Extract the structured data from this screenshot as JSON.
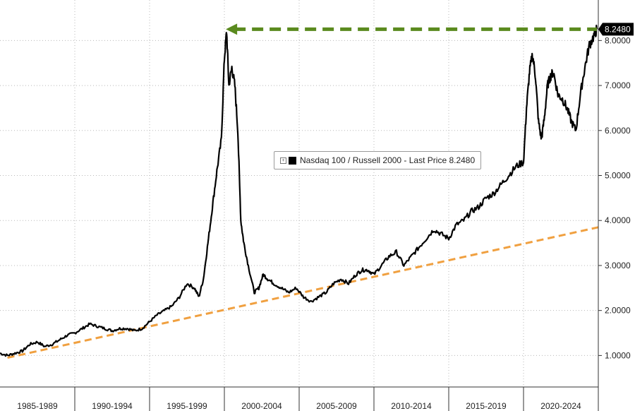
{
  "chart_data": {
    "type": "line",
    "title": "",
    "legend": {
      "label": "Nasdaq 100 / Russell 2000 - Last Price 8.2480",
      "placement": "center"
    },
    "x_categories": [
      "1985-1989",
      "1990-1994",
      "1995-1999",
      "2000-2004",
      "2005-2009",
      "2010-2014",
      "2015-2019",
      "2020-2024"
    ],
    "y_ticks": [
      "1.0000",
      "2.0000",
      "3.0000",
      "4.0000",
      "5.0000",
      "6.0000",
      "7.0000",
      "8.0000"
    ],
    "ylim": [
      0.3,
      8.9
    ],
    "xlim": [
      1985.0,
      2025.0
    ],
    "grid": true,
    "last_price_label": "8.2480",
    "series": [
      {
        "name": "Nasdaq 100 / Russell 2000",
        "color": "#000000",
        "x": [
          1985.0,
          1985.5,
          1986.0,
          1986.5,
          1987.0,
          1987.5,
          1988.0,
          1988.5,
          1989.0,
          1989.5,
          1990.0,
          1990.5,
          1991.0,
          1991.5,
          1992.0,
          1992.5,
          1993.0,
          1993.5,
          1994.0,
          1994.5,
          1995.0,
          1995.5,
          1996.0,
          1996.5,
          1997.0,
          1997.5,
          1998.0,
          1998.3,
          1998.6,
          1998.9,
          1999.2,
          1999.5,
          1999.8,
          2000.0,
          2000.15,
          2000.3,
          2000.5,
          2000.7,
          2000.9,
          2001.1,
          2001.3,
          2001.6,
          2002.0,
          2002.3,
          2002.6,
          2002.9,
          2003.3,
          2003.8,
          2004.3,
          2004.8,
          2005.3,
          2005.8,
          2006.3,
          2006.8,
          2007.3,
          2007.8,
          2008.3,
          2008.8,
          2009.2,
          2009.6,
          2010.0,
          2010.5,
          2011.0,
          2011.5,
          2012.0,
          2012.5,
          2013.0,
          2013.5,
          2014.0,
          2014.5,
          2015.0,
          2015.5,
          2016.0,
          2016.5,
          2017.0,
          2017.5,
          2018.0,
          2018.5,
          2019.0,
          2019.5,
          2020.0,
          2020.2,
          2020.4,
          2020.6,
          2020.8,
          2021.0,
          2021.2,
          2021.4,
          2021.6,
          2021.8,
          2022.0,
          2022.3,
          2022.6,
          2022.9,
          2023.2,
          2023.5,
          2023.8,
          2024.1,
          2024.4,
          2024.7,
          2024.9
        ],
        "values": [
          1.05,
          1.0,
          1.05,
          1.1,
          1.25,
          1.3,
          1.2,
          1.25,
          1.35,
          1.45,
          1.5,
          1.6,
          1.7,
          1.65,
          1.6,
          1.55,
          1.6,
          1.6,
          1.55,
          1.6,
          1.75,
          1.9,
          2.0,
          2.1,
          2.3,
          2.6,
          2.5,
          2.3,
          2.7,
          3.5,
          4.3,
          5.1,
          5.8,
          7.6,
          8.2,
          7.0,
          7.4,
          7.0,
          6.0,
          4.0,
          3.5,
          3.0,
          2.4,
          2.5,
          2.8,
          2.7,
          2.6,
          2.5,
          2.4,
          2.5,
          2.3,
          2.2,
          2.3,
          2.4,
          2.6,
          2.7,
          2.6,
          2.8,
          2.9,
          2.9,
          2.8,
          3.0,
          3.2,
          3.3,
          3.0,
          3.2,
          3.4,
          3.6,
          3.8,
          3.7,
          3.6,
          3.9,
          4.0,
          4.2,
          4.3,
          4.5,
          4.6,
          4.8,
          5.0,
          5.2,
          5.3,
          6.5,
          7.3,
          7.7,
          7.2,
          6.2,
          5.8,
          6.3,
          7.0,
          7.2,
          7.3,
          6.8,
          6.7,
          6.5,
          6.2,
          6.0,
          6.8,
          7.4,
          7.9,
          8.1,
          8.25
        ]
      },
      {
        "name": "",
        "style": "dashed",
        "color": "#f0a040",
        "x": [
          1985.5,
          2025.0
        ],
        "values": [
          0.95,
          3.85
        ]
      },
      {
        "name": "",
        "style": "dashed-arrow",
        "color": "#5a8a1e",
        "x": [
          2000.1,
          2024.9
        ],
        "values": [
          8.25,
          8.25
        ]
      }
    ]
  }
}
